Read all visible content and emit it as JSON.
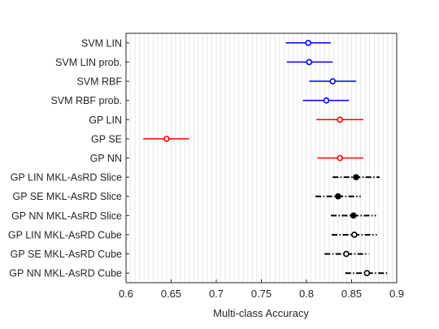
{
  "chart_data": {
    "type": "scatter",
    "title": "",
    "xlabel": "Multi-class Accuracy",
    "ylabel": "",
    "xlim": [
      0.6,
      0.9
    ],
    "x_ticks": [
      "0.6",
      "0.65",
      "0.7",
      "0.75",
      "0.8",
      "0.85",
      "0.9"
    ],
    "x_tick_values": [
      0.6,
      0.65,
      0.7,
      0.75,
      0.8,
      0.85,
      0.9
    ],
    "minor_grid_step": 0.005,
    "grid": true,
    "categories": [
      "SVM LIN",
      "SVM LIN prob.",
      "SVM RBF",
      "SVM RBF prob.",
      "GP LIN",
      "GP SE",
      "GP NN",
      "GP LIN MKL-AsRD Slice",
      "GP SE MKL-AsRD Slice",
      "GP NN MKL-AsRD Slice",
      "GP LIN MKL-AsRD Cube",
      "GP SE MKL-AsRD Cube",
      "GP NN MKL-AsRD Cube"
    ],
    "series": [
      {
        "color": "#0000ff",
        "line_style": "solid",
        "marker": "open-circle",
        "points": [
          {
            "category": "SVM LIN",
            "x": 0.802,
            "low": 0.777,
            "high": 0.827
          },
          {
            "category": "SVM LIN prob.",
            "x": 0.803,
            "low": 0.778,
            "high": 0.829
          },
          {
            "category": "SVM RBF",
            "x": 0.829,
            "low": 0.803,
            "high": 0.855
          },
          {
            "category": "SVM RBF prob.",
            "x": 0.822,
            "low": 0.796,
            "high": 0.847
          }
        ]
      },
      {
        "color": "#ff0000",
        "line_style": "solid",
        "marker": "open-circle",
        "points": [
          {
            "category": "GP LIN",
            "x": 0.837,
            "low": 0.811,
            "high": 0.863
          },
          {
            "category": "GP SE",
            "x": 0.645,
            "low": 0.619,
            "high": 0.67
          },
          {
            "category": "GP NN",
            "x": 0.837,
            "low": 0.812,
            "high": 0.863
          }
        ]
      },
      {
        "color": "#000000",
        "line_style": "dashdot",
        "marker": "filled-circle",
        "points": [
          {
            "category": "GP LIN MKL-AsRD Slice",
            "x": 0.855,
            "low": 0.829,
            "high": 0.881
          },
          {
            "category": "GP SE MKL-AsRD Slice",
            "x": 0.835,
            "low": 0.81,
            "high": 0.86
          },
          {
            "category": "GP NN MKL-AsRD Slice",
            "x": 0.852,
            "low": 0.827,
            "high": 0.877
          }
        ]
      },
      {
        "color": "#000000",
        "line_style": "dashdot",
        "marker": "open-circle",
        "points": [
          {
            "category": "GP LIN MKL-AsRD Cube",
            "x": 0.853,
            "low": 0.828,
            "high": 0.878
          },
          {
            "category": "GP SE MKL-AsRD Cube",
            "x": 0.844,
            "low": 0.82,
            "high": 0.869
          },
          {
            "category": "GP NN MKL-AsRD Cube",
            "x": 0.867,
            "low": 0.843,
            "high": 0.891
          }
        ]
      }
    ]
  }
}
